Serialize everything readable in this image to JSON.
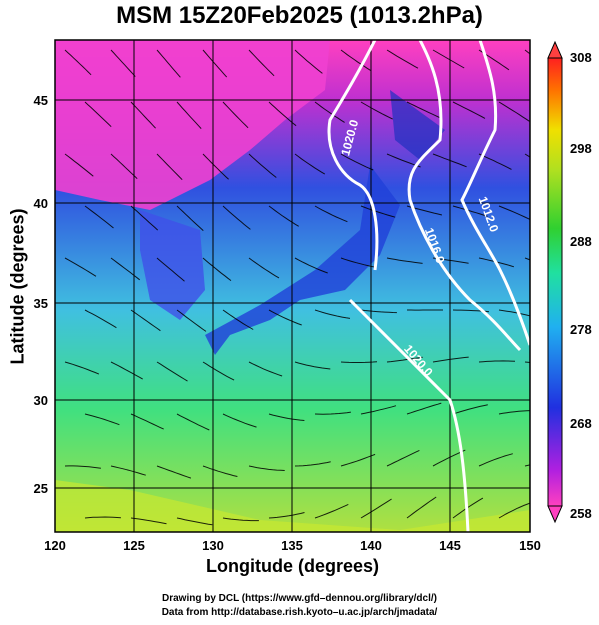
{
  "title": "MSM 15Z20Feb2025 (1013.2hPa)",
  "axes": {
    "xlabel": "Longitude (degrees)",
    "ylabel": "Latitude  (degrees)",
    "xticks": [
      "120",
      "125",
      "130",
      "135",
      "140",
      "145",
      "150"
    ],
    "yticks": [
      "25",
      "30",
      "35",
      "40",
      "45"
    ],
    "xrange": [
      120,
      150
    ],
    "yrange": [
      22.4,
      47.6
    ]
  },
  "colorbar": {
    "ticks": [
      "258",
      "268",
      "278",
      "288",
      "298",
      "308"
    ],
    "range": [
      258,
      308
    ],
    "colors": [
      "#ff60a0",
      "#a020f0",
      "#2040e0",
      "#30b0f0",
      "#30e0b0",
      "#30d030",
      "#b0e020",
      "#f0f000",
      "#ff8000",
      "#ff2020"
    ]
  },
  "contours": [
    {
      "label": "1020.0"
    },
    {
      "label": "1016.0"
    },
    {
      "label": "1012.0"
    },
    {
      "label": "1020.0"
    }
  ],
  "credits": {
    "line1": "Drawing by DCL (https://www.gfd–dennou.org/library/dcl/)",
    "line2": "Data from http://database.rish.kyoto–u.ac.jp/arch/jmadata/"
  }
}
